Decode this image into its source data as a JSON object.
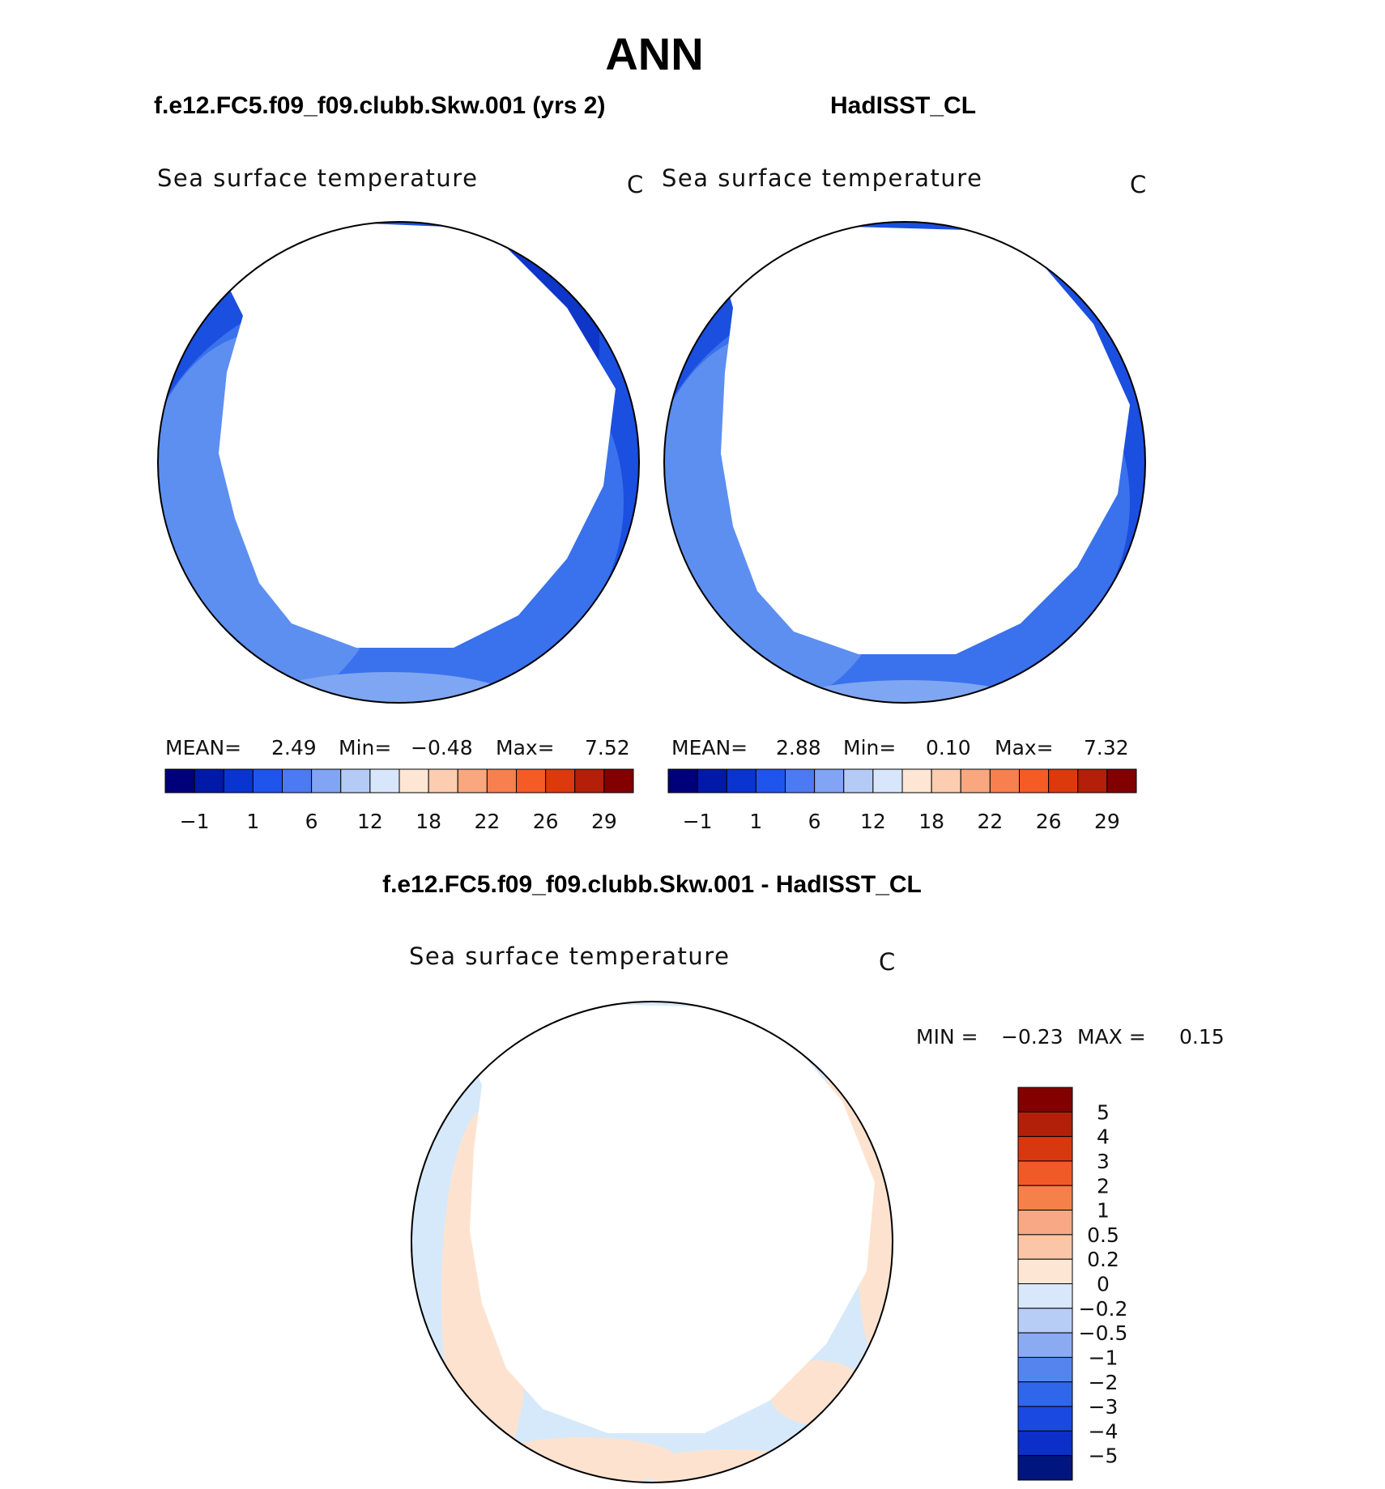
{
  "title": "ANN",
  "panels": [
    {
      "header": "f.e12.FC5.f09_f09.clubb.Skw.001 (yrs 2)",
      "variable": "Sea surface temperature",
      "units": "C",
      "stats": {
        "mean_label": "MEAN=",
        "mean": "2.49",
        "min_label": "Min=",
        "min": "−0.48",
        "max_label": "Max=",
        "max": "7.52"
      }
    },
    {
      "header": "HadISST_CL",
      "variable": "Sea surface temperature",
      "units": "C",
      "stats": {
        "mean_label": "MEAN=",
        "mean": "2.88",
        "min_label": "Min=",
        "min": "0.10",
        "max_label": "Max=",
        "max": "7.32"
      }
    },
    {
      "header": "f.e12.FC5.f09_f09.clubb.Skw.001 - HadISST_CL",
      "variable": "Sea surface temperature",
      "units": "C",
      "stats": {
        "min_label": "MIN =",
        "min": "−0.23",
        "max_label": "MAX =",
        "max": "0.15"
      }
    }
  ],
  "colors": {
    "fill_levels": [
      "#0a1f96",
      "#1645d6",
      "#2e63e8",
      "#4c82ee",
      "#7ea6f2"
    ],
    "pale_blue": "#d6e9fa",
    "pale_orange": "#fde3cf",
    "coast": "#000000"
  },
  "chart_data": [
    {
      "type": "heatmap",
      "projection": "south polar stereographic",
      "panel": "model",
      "colorbar": {
        "orientation": "horizontal",
        "tick_labels": [
          "−1",
          "1",
          "6",
          "12",
          "18",
          "22",
          "26",
          "29"
        ],
        "colors": [
          "#00007a",
          "#0019a8",
          "#0a34d0",
          "#1f55ec",
          "#4b7af2",
          "#82a4f4",
          "#b4cbf6",
          "#d7e6fa",
          "#fde6d3",
          "#fccdb0",
          "#f9a77f",
          "#f7804e",
          "#f45b25",
          "#dc3a0c",
          "#b31f08",
          "#820000"
        ]
      }
    },
    {
      "type": "heatmap",
      "projection": "south polar stereographic",
      "panel": "observations",
      "colorbar": {
        "orientation": "horizontal",
        "tick_labels": [
          "−1",
          "1",
          "6",
          "12",
          "18",
          "22",
          "26",
          "29"
        ],
        "colors": [
          "#00007a",
          "#0019a8",
          "#0a34d0",
          "#1f55ec",
          "#4b7af2",
          "#82a4f4",
          "#b4cbf6",
          "#d7e6fa",
          "#fde6d3",
          "#fccdb0",
          "#f9a77f",
          "#f7804e",
          "#f45b25",
          "#dc3a0c",
          "#b31f08",
          "#820000"
        ]
      }
    },
    {
      "type": "heatmap",
      "projection": "south polar stereographic",
      "panel": "difference",
      "colorbar": {
        "orientation": "vertical",
        "tick_labels": [
          "5",
          "4",
          "3",
          "2",
          "1",
          "0.5",
          "0.2",
          "0",
          "−0.2",
          "−0.5",
          "−1",
          "−2",
          "−3",
          "−4",
          "−5"
        ],
        "colors": [
          "#830000",
          "#b32009",
          "#d83810",
          "#f05a26",
          "#f58049",
          "#f8a884",
          "#fbc6a8",
          "#fde6d4",
          "#d8e8fa",
          "#b8cdf5",
          "#8aaaf2",
          "#5584ee",
          "#3066e9",
          "#1a49e2",
          "#0b2fc8",
          "#00157d"
        ]
      }
    }
  ]
}
